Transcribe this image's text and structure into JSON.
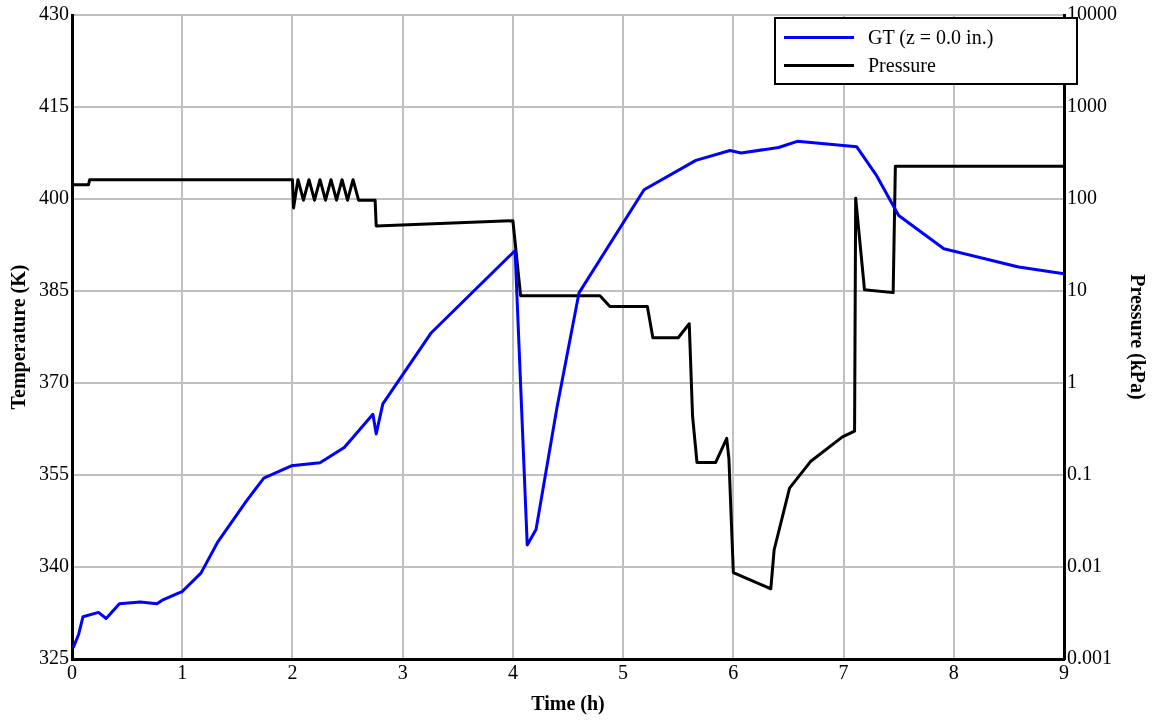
{
  "chart_data": {
    "type": "line",
    "xlabel": "Time (h)",
    "ylabel": "Temperature (K)",
    "y2label": "Pressure (kPa)",
    "xlim": [
      0,
      9
    ],
    "xticks": [
      0,
      1,
      2,
      3,
      4,
      5,
      6,
      7,
      8,
      9
    ],
    "ylim": [
      325,
      430
    ],
    "yticks": [
      325,
      340,
      355,
      370,
      385,
      400,
      415,
      430
    ],
    "y2lim": [
      0.001,
      10000
    ],
    "y2ticks": [
      0.001,
      0.01,
      0.1,
      1,
      10,
      100,
      1000,
      10000
    ],
    "log": "y2",
    "grid": true,
    "legend": "top right",
    "series": [
      {
        "name": "GT (z = 0.0 in.)",
        "color": "#0000ff",
        "x": [
          0.01,
          0.06,
          0.1,
          0.24,
          0.31,
          0.43,
          0.62,
          0.77,
          0.83,
          0.96,
          1.0,
          1.17,
          1.32,
          1.58,
          1.74,
          1.99,
          2.25,
          2.47,
          2.73,
          2.76,
          2.82,
          3.26,
          4.02,
          4.13,
          4.21,
          4.4,
          4.6,
          5.19,
          5.66,
          5.97,
          6.07,
          6.41,
          6.58,
          7.12,
          7.3,
          7.5,
          7.91,
          8.59,
          9.0
        ],
        "values": [
          326.8,
          329,
          331.9,
          332.6,
          331.6,
          334,
          334.3,
          334,
          334.7,
          335.7,
          336,
          339,
          344,
          350.7,
          354.5,
          356.5,
          357,
          359.5,
          364.9,
          361.7,
          366.6,
          378.2,
          391.6,
          343.6,
          346.1,
          366,
          384.7,
          401.5,
          406.3,
          407.9,
          407.5,
          408.4,
          409.4,
          408.5,
          403.8,
          397.3,
          391.9,
          388.9,
          387.8
        ]
      },
      {
        "name": "Pressure",
        "color": "#000000",
        "axis": "y2",
        "x": [
          0.0,
          0.15,
          0.16,
          2.0,
          2.01,
          2.05,
          2.1,
          2.15,
          2.2,
          2.25,
          2.3,
          2.35,
          2.4,
          2.45,
          2.5,
          2.55,
          2.6,
          2.66,
          2.75,
          2.76,
          4.0,
          4.07,
          4.79,
          4.88,
          5.22,
          5.27,
          5.5,
          5.6,
          5.63,
          5.67,
          5.84,
          5.94,
          5.96,
          6.0,
          6.34,
          6.37,
          6.51,
          6.7,
          6.99,
          7.1,
          7.11,
          7.19,
          7.45,
          7.47,
          9.0
        ],
        "values": [
          143,
          143,
          162,
          162,
          80,
          162,
          97,
          162,
          97,
          162,
          97,
          162,
          97,
          162,
          97,
          162,
          97,
          97,
          97,
          51,
          58,
          8.9,
          8.9,
          6.8,
          6.8,
          3.1,
          3.1,
          4.4,
          0.44,
          0.137,
          0.137,
          0.25,
          0.15,
          0.0087,
          0.0058,
          0.0153,
          0.072,
          0.14,
          0.26,
          0.3,
          102,
          10.3,
          9.6,
          227,
          227
        ]
      }
    ]
  }
}
